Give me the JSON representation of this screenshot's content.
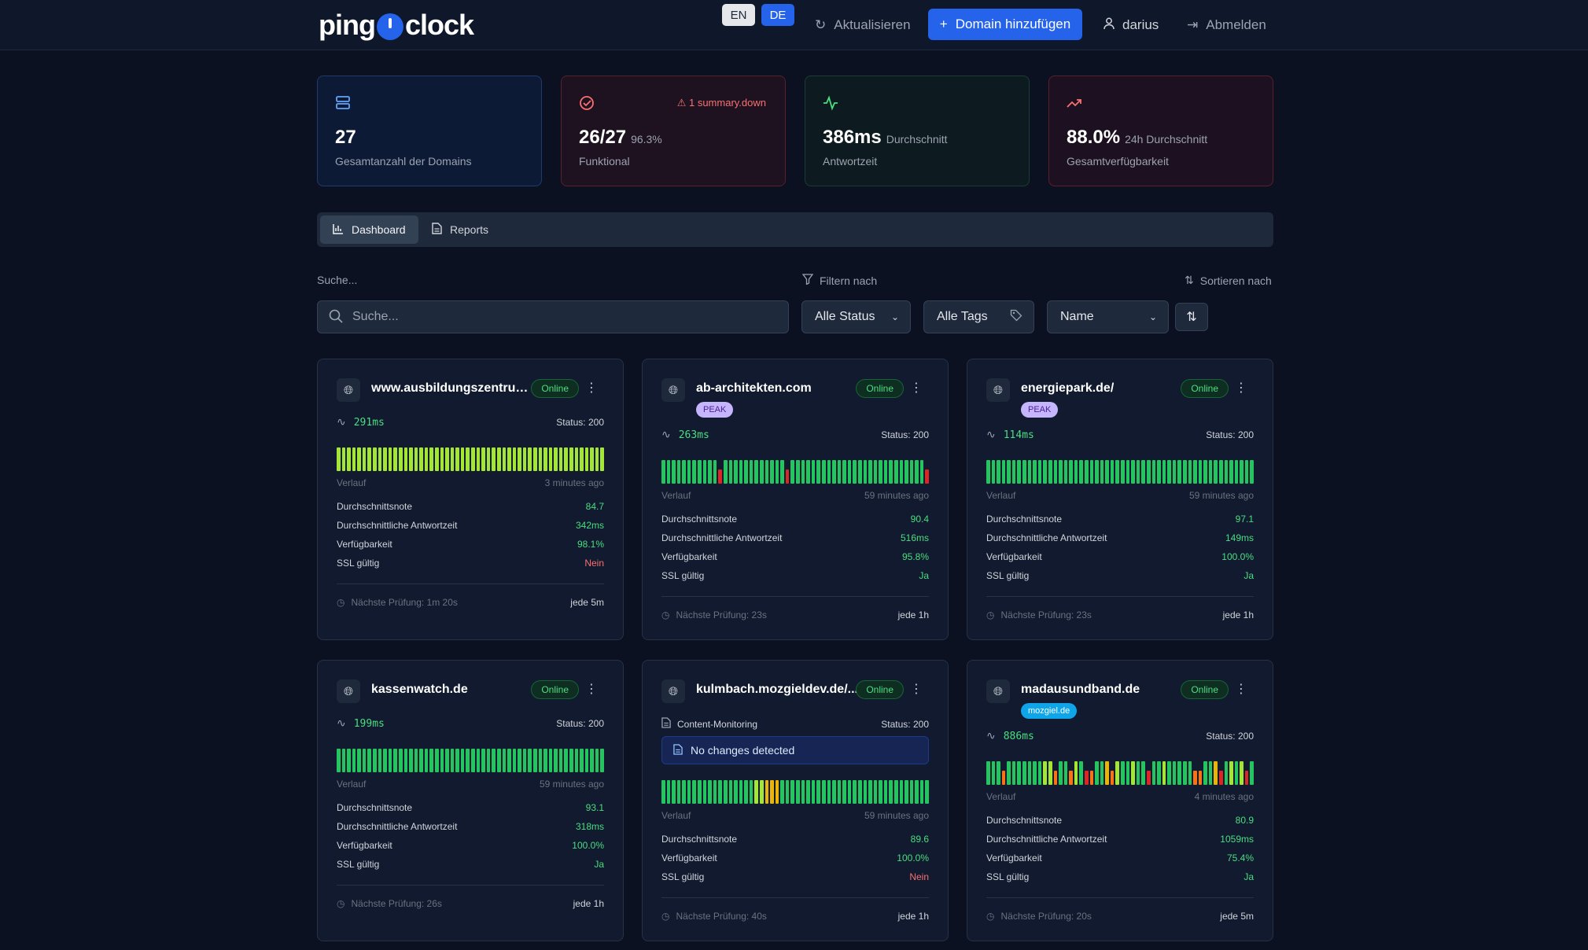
{
  "header": {
    "logo_text_left": "ping",
    "logo_text_right": "clock",
    "lang_en": "EN",
    "lang_de": "DE",
    "refresh_label": "Aktualisieren",
    "add_domain_label": "Domain hinzufügen",
    "user_name": "darius",
    "logout_label": "Abmelden"
  },
  "summary": {
    "total": {
      "value": "27",
      "label": "Gesamtanzahl der Domains"
    },
    "functional": {
      "value": "26/27",
      "sub": "96.3%",
      "label": "Funktional",
      "alert": "1 summary.down"
    },
    "response": {
      "value": "386ms",
      "sub": "Durchschnitt",
      "label": "Antwortzeit"
    },
    "availability": {
      "value": "88.0%",
      "sub": "24h Durchschnitt",
      "label": "Gesamtverfügbarkeit"
    }
  },
  "tabs": {
    "dashboard": "Dashboard",
    "reports": "Reports"
  },
  "filters": {
    "search_label": "Suche...",
    "search_placeholder": "Suche...",
    "filter_label": "Filtern nach",
    "sort_label": "Sortieren nach",
    "status_select": "Alle Status",
    "tags_select": "Alle Tags",
    "sort_select": "Name"
  },
  "cards": [
    {
      "name": "www.ausbildungszentrum...",
      "status": "Online",
      "latency": "291ms",
      "http_status": "Status: 200",
      "history_label": "Verlauf",
      "history_time": "3 minutes ago",
      "metrics": [
        {
          "label": "Durchschnittsnote",
          "value": "84.7",
          "color": "#4ade80"
        },
        {
          "label": "Durchschnittliche Antwortzeit",
          "value": "342ms",
          "color": "#4ade80"
        },
        {
          "label": "Verfügbarkeit",
          "value": "98.1%",
          "color": "#4ade80"
        },
        {
          "label": "SSL gültig",
          "value": "Nein",
          "color": "#f87171"
        }
      ],
      "next_check": "Nächste Prüfung: 1m 20s",
      "interval": "jede 5m"
    },
    {
      "name": "ab-architekten.com",
      "tag": "PEAK",
      "status": "Online",
      "latency": "263ms",
      "http_status": "Status: 200",
      "history_label": "Verlauf",
      "history_time": "59 minutes ago",
      "metrics": [
        {
          "label": "Durchschnittsnote",
          "value": "90.4",
          "color": "#4ade80"
        },
        {
          "label": "Durchschnittliche Antwortzeit",
          "value": "516ms",
          "color": "#4ade80"
        },
        {
          "label": "Verfügbarkeit",
          "value": "95.8%",
          "color": "#4ade80"
        },
        {
          "label": "SSL gültig",
          "value": "Ja",
          "color": "#4ade80"
        }
      ],
      "next_check": "Nächste Prüfung: 23s",
      "interval": "jede 1h"
    },
    {
      "name": "energiepark.de/",
      "tag": "PEAK",
      "status": "Online",
      "latency": "114ms",
      "http_status": "Status: 200",
      "history_label": "Verlauf",
      "history_time": "59 minutes ago",
      "metrics": [
        {
          "label": "Durchschnittsnote",
          "value": "97.1",
          "color": "#4ade80"
        },
        {
          "label": "Durchschnittliche Antwortzeit",
          "value": "149ms",
          "color": "#4ade80"
        },
        {
          "label": "Verfügbarkeit",
          "value": "100.0%",
          "color": "#4ade80"
        },
        {
          "label": "SSL gültig",
          "value": "Ja",
          "color": "#4ade80"
        }
      ],
      "next_check": "Nächste Prüfung: 23s",
      "interval": "jede 1h"
    },
    {
      "name": "kassenwatch.de",
      "status": "Online",
      "latency": "199ms",
      "http_status": "Status: 200",
      "history_label": "Verlauf",
      "history_time": "59 minutes ago",
      "metrics": [
        {
          "label": "Durchschnittsnote",
          "value": "93.1",
          "color": "#4ade80"
        },
        {
          "label": "Durchschnittliche Antwortzeit",
          "value": "318ms",
          "color": "#4ade80"
        },
        {
          "label": "Verfügbarkeit",
          "value": "100.0%",
          "color": "#4ade80"
        },
        {
          "label": "SSL gültig",
          "value": "Ja",
          "color": "#4ade80"
        }
      ],
      "next_check": "Nächste Prüfung: 26s",
      "interval": "jede 1h"
    },
    {
      "name": "kulmbach.mozgieldev.de/...",
      "status": "Online",
      "content_monitoring": "Content-Monitoring",
      "http_status": "Status: 200",
      "no_changes": "No changes detected",
      "history_label": "Verlauf",
      "history_time": "59 minutes ago",
      "metrics": [
        {
          "label": "Durchschnittsnote",
          "value": "89.6",
          "color": "#4ade80"
        },
        {
          "label": "Verfügbarkeit",
          "value": "100.0%",
          "color": "#4ade80"
        },
        {
          "label": "SSL gültig",
          "value": "Nein",
          "color": "#f87171"
        }
      ],
      "next_check": "Nächste Prüfung: 40s",
      "interval": "jede 1h"
    },
    {
      "name": "madausundband.de",
      "tag": "mozgiel.de",
      "status": "Online",
      "latency": "886ms",
      "http_status": "Status: 200",
      "history_label": "Verlauf",
      "history_time": "4 minutes ago",
      "metrics": [
        {
          "label": "Durchschnittsnote",
          "value": "80.9",
          "color": "#4ade80"
        },
        {
          "label": "Durchschnittliche Antwortzeit",
          "value": "1059ms",
          "color": "#4ade80"
        },
        {
          "label": "Verfügbarkeit",
          "value": "75.4%",
          "color": "#4ade80"
        },
        {
          "label": "SSL gültig",
          "value": "Ja",
          "color": "#4ade80"
        }
      ],
      "next_check": "Nächste Prüfung: 20s",
      "interval": "jede 5m"
    }
  ],
  "bar_colors": {
    "green": "#22c55e",
    "lime": "#a3e635",
    "yellow": "#eab308",
    "orange": "#f97316",
    "red": "#dc2626"
  },
  "histories": [
    "LLLLLLLLLLLLLLLLLLLLLLLLLLLLLLLLLLLLLLLLLLLLLLLLLLLL",
    "GGGGGGGGGGGRGGGGGGGGGGGGRGGGGGGGGGGGGGGGGGGGGGGGGGGR",
    "GGGGGGGGGGGGGGGGGGGGGGGGGGGGGGGGGGGGGGGGGGGGGGGGGGGG",
    "GGGGGGGGGGGGGGGGGGGGGGGGGGGGGGGGGGGGGGGGGGGGGGGGGGGG",
    "GGGGGGGGGGGGGGGGGGLLYYYGGGGGGGGGGGGGGGGGGGGGGGGGGGGG",
    "GGGOGGGGGGGLLOGGOLGROGGYOLGGLGGRGGLGGGGGOOGGYRGLGLRG"
  ]
}
